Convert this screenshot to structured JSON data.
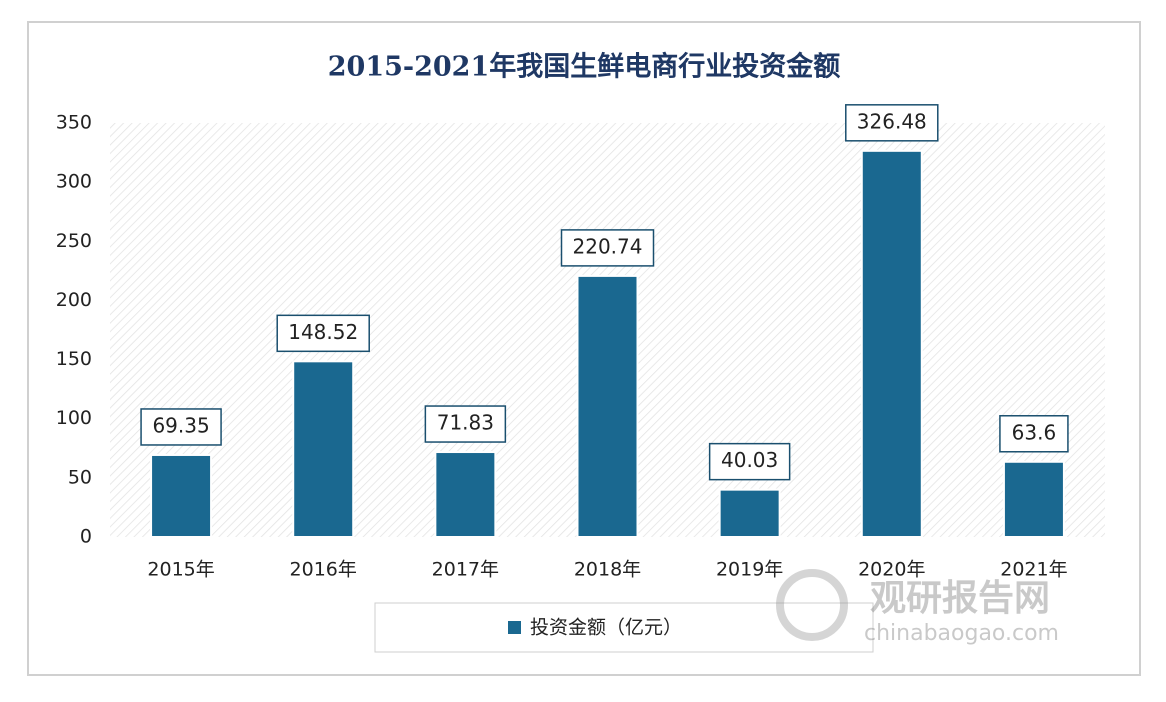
{
  "chart_data": {
    "type": "bar",
    "title": "2015-2021年我国生鲜电商行业投资金额",
    "categories": [
      "2015年",
      "2016年",
      "2017年",
      "2018年",
      "2019年",
      "2020年",
      "2021年"
    ],
    "series": [
      {
        "name": "投资金额（亿元）",
        "color": "#1a6890",
        "values": [
          69.35,
          148.52,
          71.83,
          220.74,
          40.03,
          326.48,
          63.6
        ]
      }
    ],
    "ylim": [
      0,
      350
    ],
    "yticks": [
      0,
      50,
      100,
      150,
      200,
      250,
      300,
      350
    ],
    "grid": false,
    "legend": "bottom",
    "watermark": {
      "name": "观研报告网",
      "site": "chinabaogao.com"
    }
  }
}
